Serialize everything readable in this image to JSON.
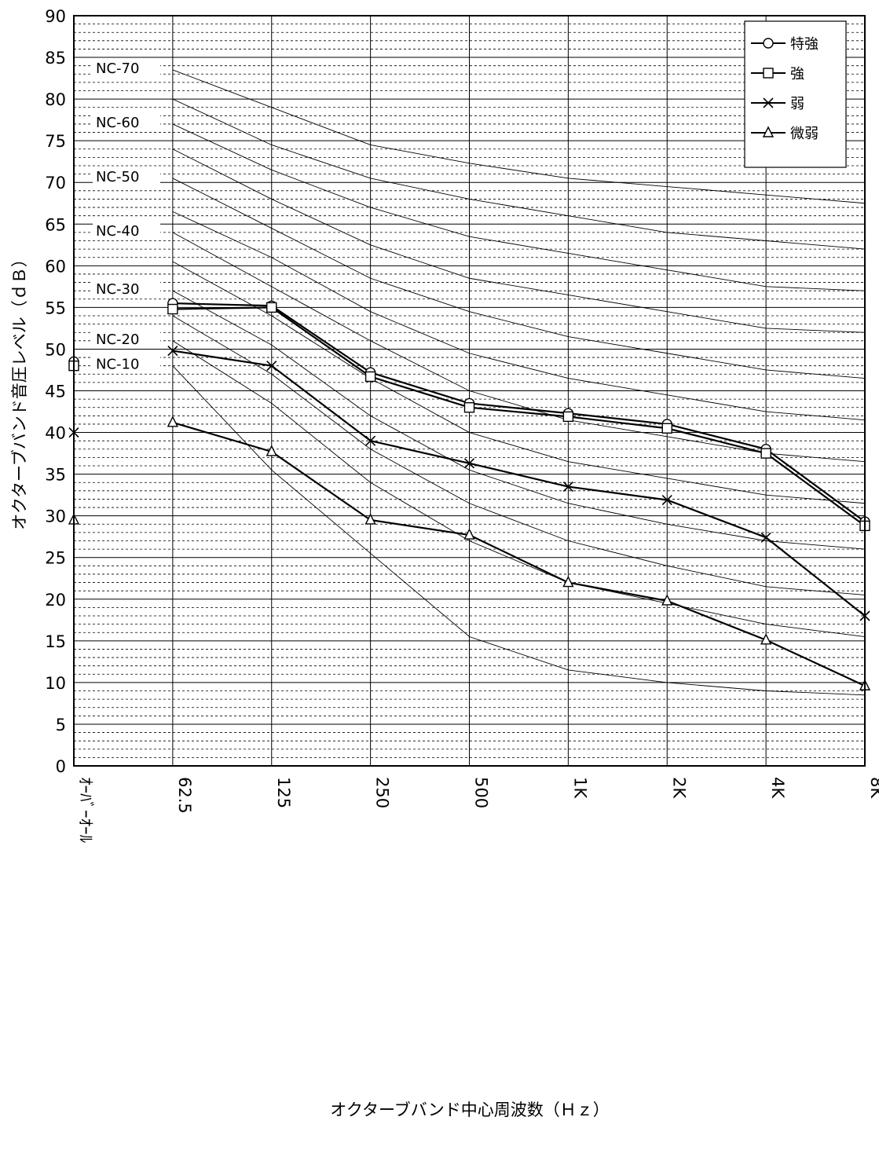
{
  "chart_data": {
    "type": "line",
    "title": "",
    "xlabel": "オクターブバンド中心周波数（Ｈｚ）",
    "ylabel": "オクターブバンド音圧レベル（ｄＢ）",
    "categories": [
      "ｵｰﾊﾞｰｵｰﾙ",
      "62.5",
      "125",
      "250",
      "500",
      "1K",
      "2K",
      "4K",
      "8K"
    ],
    "ylim": [
      0,
      90
    ],
    "yticks": [
      0,
      5,
      10,
      15,
      20,
      25,
      30,
      35,
      40,
      45,
      50,
      55,
      60,
      65,
      70,
      75,
      80,
      85,
      90
    ],
    "grid": true,
    "legend_position": "top-right",
    "series": [
      {
        "name": "特強",
        "marker": "circle",
        "values": [
          48.5,
          55.5,
          55.2,
          47.2,
          43.5,
          42.3,
          41.0,
          38.0,
          29.3
        ]
      },
      {
        "name": "強",
        "marker": "square",
        "values": [
          48.0,
          54.8,
          55.0,
          46.7,
          43.0,
          41.9,
          40.5,
          37.5,
          28.8
        ]
      },
      {
        "name": "弱",
        "marker": "x",
        "values": [
          40.0,
          49.8,
          48.0,
          39.0,
          36.3,
          33.5,
          31.9,
          27.4,
          18.0
        ]
      },
      {
        "name": "微弱",
        "marker": "triangle",
        "values": [
          29.5,
          41.2,
          37.7,
          29.5,
          27.7,
          22.0,
          19.8,
          15.1,
          9.6
        ]
      }
    ],
    "nc_curves": [
      {
        "label": "NC-70",
        "values": [
          83.5,
          79.0,
          74.5,
          72.3,
          70.5,
          69.5,
          68.5,
          67.5
        ]
      },
      {
        "label": "",
        "values": [
          80.0,
          74.5,
          70.5,
          68.0,
          66.0,
          64.0,
          63.0,
          62.0
        ]
      },
      {
        "label": "NC-60",
        "values": [
          77.0,
          71.5,
          67.0,
          63.5,
          61.5,
          59.5,
          57.5,
          57.0
        ]
      },
      {
        "label": "",
        "values": [
          74.0,
          68.0,
          62.5,
          58.5,
          56.5,
          54.5,
          52.5,
          52.0
        ]
      },
      {
        "label": "NC-50",
        "values": [
          70.5,
          64.5,
          58.5,
          54.5,
          51.5,
          49.5,
          47.5,
          46.5
        ]
      },
      {
        "label": "",
        "values": [
          66.5,
          61.0,
          54.5,
          49.5,
          46.5,
          44.5,
          42.5,
          41.5
        ]
      },
      {
        "label": "NC-40",
        "values": [
          64.0,
          57.5,
          51.0,
          45.0,
          41.5,
          39.5,
          37.5,
          36.5
        ]
      },
      {
        "label": "",
        "values": [
          60.5,
          54.0,
          46.5,
          40.0,
          36.5,
          34.5,
          32.5,
          31.5
        ]
      },
      {
        "label": "NC-30",
        "values": [
          57.0,
          50.5,
          42.0,
          35.5,
          31.5,
          29.0,
          27.0,
          26.0
        ]
      },
      {
        "label": "",
        "values": [
          54.0,
          47.0,
          38.0,
          31.5,
          27.0,
          24.0,
          21.5,
          20.5
        ]
      },
      {
        "label": "NC-20",
        "values": [
          51.0,
          43.5,
          34.0,
          27.0,
          22.0,
          19.5,
          17.0,
          15.5
        ]
      },
      {
        "label": "NC-10",
        "values": [
          48.0,
          35.5,
          25.5,
          15.5,
          11.5,
          10.0,
          9.0,
          8.5
        ]
      }
    ]
  }
}
